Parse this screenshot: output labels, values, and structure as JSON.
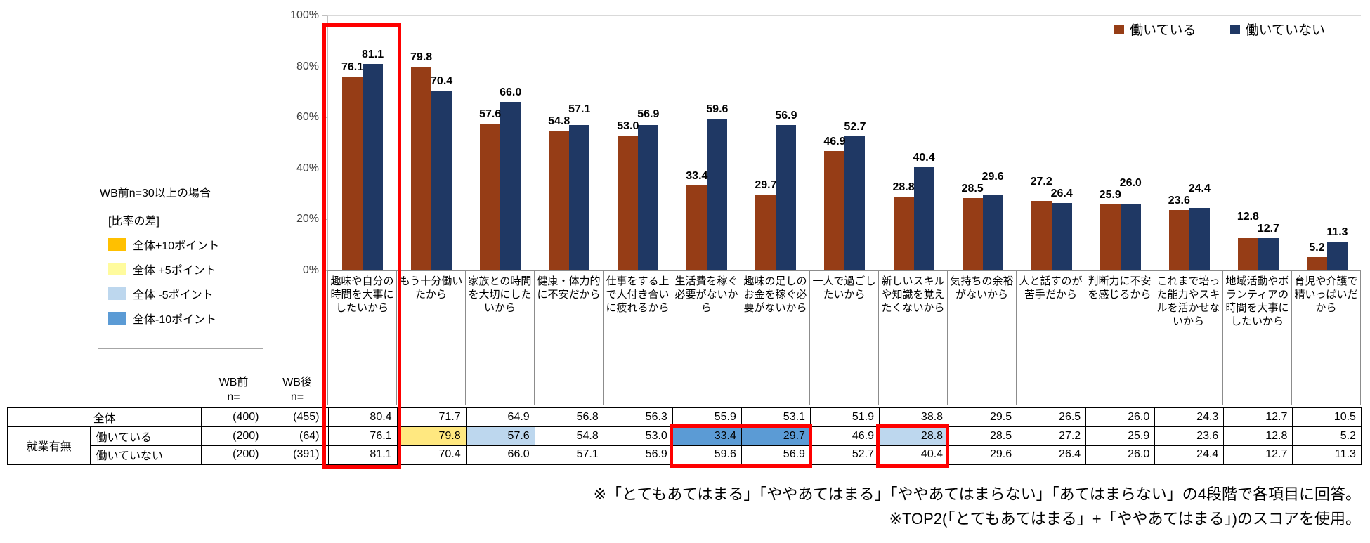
{
  "chart_data": {
    "type": "bar",
    "title": "",
    "ylim": [
      0,
      100
    ],
    "yticks": [
      "100%",
      "80%",
      "60%",
      "40%",
      "20%",
      "0%"
    ],
    "grid": false,
    "legend_position": "top-right",
    "categories": [
      "趣味や自分の時間を大事にしたいから",
      "もう十分働いたから",
      "家族との時間を大切にしたいから",
      "健康・体力的に不安だから",
      "仕事をする上で人付き合いに疲れるから",
      "生活費を稼ぐ必要がないから",
      "趣味の足しのお金を稼ぐ必要がないから",
      "一人で過ごしたいから",
      "新しいスキルや知識を覚えたくないから",
      "気持ちの余裕がないから",
      "人と話すのが苦手だから",
      "判断力に不安を感じるから",
      "これまで培った能力やスキルを活かせないから",
      "地域活動やボランティアの時間を大事にしたいから",
      "育児や介護で精いっぱいだから"
    ],
    "series": [
      {
        "key": "working",
        "name": "働いている",
        "color": "#963D16",
        "values": [
          76.1,
          79.8,
          57.6,
          54.8,
          53.0,
          33.4,
          29.7,
          46.9,
          28.8,
          28.5,
          27.2,
          25.9,
          23.6,
          12.8,
          5.2
        ]
      },
      {
        "key": "not-working",
        "name": "働いていない",
        "color": "#1F3864",
        "values": [
          81.1,
          70.4,
          66.0,
          57.1,
          56.9,
          59.6,
          56.9,
          52.7,
          40.4,
          29.6,
          26.4,
          26.0,
          24.4,
          12.7,
          11.3
        ]
      }
    ]
  },
  "legend_box": {
    "note_above": "WB前n=30以上の場合",
    "title": "[比率の差]",
    "items": [
      {
        "label": "全体+10ポイント",
        "color": "#FFC000"
      },
      {
        "label": "全体 +5ポイント",
        "color": "#FFFB9D"
      },
      {
        "label": "全体 -5ポイント",
        "color": "#BDD7EE"
      },
      {
        "label": "全体-10ポイント",
        "color": "#5B9BD5"
      }
    ]
  },
  "table": {
    "header": {
      "wb_pre": "WB前",
      "wb_post": "WB後",
      "n_eq": "n="
    },
    "group_label": "就業有無",
    "highlight_palette": {
      "plus10": "#FFC000",
      "plus5": "#FFE880",
      "minus5": "#BDD7EE",
      "minus10": "#5B9BD5"
    },
    "rows": [
      {
        "label": "全体",
        "n_pre": "(400)",
        "n_post": "(455)",
        "values": [
          80.4,
          71.7,
          64.9,
          56.8,
          56.3,
          55.9,
          53.1,
          51.9,
          38.8,
          29.5,
          26.5,
          26.0,
          24.3,
          12.7,
          10.5
        ],
        "highlights": {}
      },
      {
        "group": "就業有無",
        "label": "働いている",
        "n_pre": "(200)",
        "n_post": "(64)",
        "values": [
          76.1,
          79.8,
          57.6,
          54.8,
          53.0,
          33.4,
          29.7,
          46.9,
          28.8,
          28.5,
          27.2,
          25.9,
          23.6,
          12.8,
          5.2
        ],
        "highlights": {
          "1": "plus5",
          "2": "minus5",
          "5": "minus10",
          "6": "minus10",
          "8": "minus5"
        }
      },
      {
        "label": "働いていない",
        "n_pre": "(200)",
        "n_post": "(391)",
        "values": [
          81.1,
          70.4,
          66.0,
          57.1,
          56.9,
          59.6,
          56.9,
          52.7,
          40.4,
          29.6,
          26.4,
          26.0,
          24.4,
          12.7,
          11.3
        ],
        "highlights": {}
      }
    ]
  },
  "notes": [
    "※「とてもあてはまる」「ややあてはまる」「ややあてはまらない」「あてはまらない」の4段階で各項目に回答。",
    "※TOP2(「とてもあてはまる」+「ややあてはまる」)のスコアを使用。"
  ]
}
